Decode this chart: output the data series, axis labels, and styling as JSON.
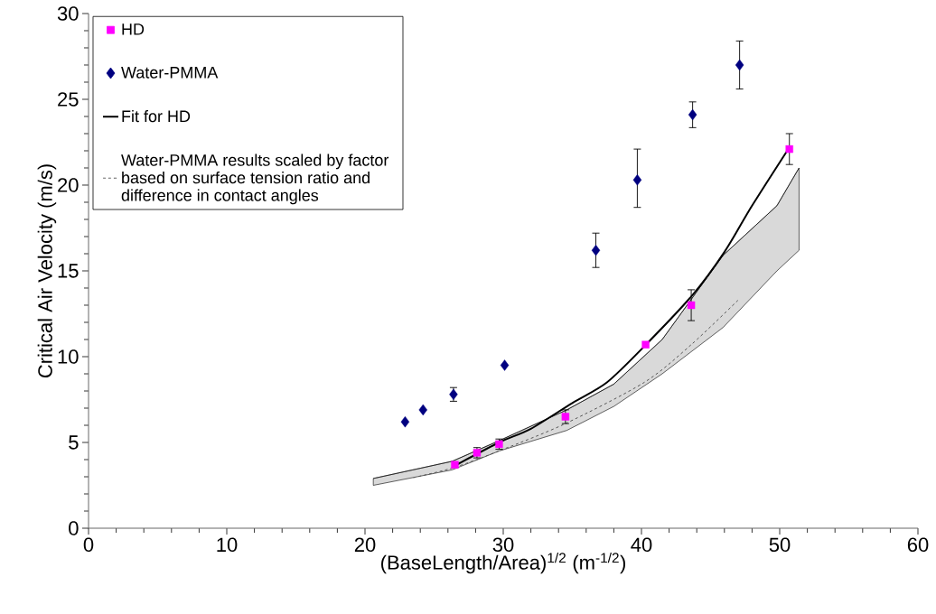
{
  "chart_data": {
    "type": "scatter",
    "xlabel": "(BaseLength/Area)$^{1/2}$ (m$^{-1/2}$)",
    "ylabel": "Critical Air Velocity (m/s)",
    "xlim": [
      0,
      60
    ],
    "ylim": [
      0,
      30
    ],
    "xticks": [
      0,
      10,
      20,
      30,
      40,
      50,
      60
    ],
    "yticks": [
      0,
      5,
      10,
      15,
      20,
      25,
      30
    ],
    "legend": "top left",
    "series": [
      {
        "name": "HD",
        "marker": "square",
        "color": "#ff00ff",
        "x": [
          26.5,
          28.1,
          29.7,
          34.5,
          40.3,
          43.6,
          50.7
        ],
        "values": [
          3.7,
          4.4,
          4.9,
          6.5,
          10.7,
          13.0,
          22.1
        ],
        "errors": [
          null,
          0.3,
          0.3,
          0.4,
          null,
          0.9,
          0.9
        ]
      },
      {
        "name": "Water-PMMA",
        "marker": "diamond",
        "color": "#000080",
        "x": [
          22.9,
          24.2,
          26.4,
          30.1,
          36.7,
          39.7,
          43.7,
          47.1
        ],
        "values": [
          6.2,
          6.9,
          7.8,
          9.5,
          16.2,
          20.3,
          24.1,
          27.0
        ],
        "errors": [
          null,
          null,
          0.4,
          null,
          1.0,
          [
            18.7,
            22.1
          ],
          0.75,
          1.4
        ]
      },
      {
        "name": "Fit for HD",
        "type": "line",
        "line_style": "solid",
        "color": "#000000",
        "x": [
          26.4,
          29.7,
          32.0,
          35.0,
          37.5,
          40.2,
          43.7,
          46.0,
          48.0,
          50.7
        ],
        "values": [
          3.6,
          5.0,
          5.8,
          7.3,
          8.5,
          10.6,
          13.6,
          16.1,
          18.8,
          22.2
        ]
      },
      {
        "name": "Water-PMMA results scaled by factor based on surface tension ratio and difference in contact angles",
        "type": "line",
        "line_style": "dashed",
        "color": "#555555",
        "x": [
          23.5,
          26.5,
          30.0,
          34.5,
          40.2,
          43.6,
          47.0
        ],
        "values": [
          2.95,
          3.55,
          4.6,
          6.1,
          8.5,
          10.7,
          13.3
        ]
      },
      {
        "type": "line",
        "line_style": "solid",
        "color": "#000000",
        "x": [
          20.6,
          26.3,
          29.7,
          34.6,
          38.0,
          41.5,
          45.9,
          49.8,
          51.4
        ],
        "values": [
          2.9,
          3.9,
          5.1,
          6.9,
          8.4,
          11.0,
          15.9,
          18.8,
          21.0
        ],
        "lower": [
          2.5,
          3.4,
          4.5,
          5.7,
          7.1,
          9.0,
          11.7,
          15.0,
          16.2
        ],
        "upper": [
          2.9,
          3.9,
          5.1,
          6.9,
          8.4,
          11.0,
          15.9,
          18.8,
          21.0
        ]
      }
    ]
  }
}
